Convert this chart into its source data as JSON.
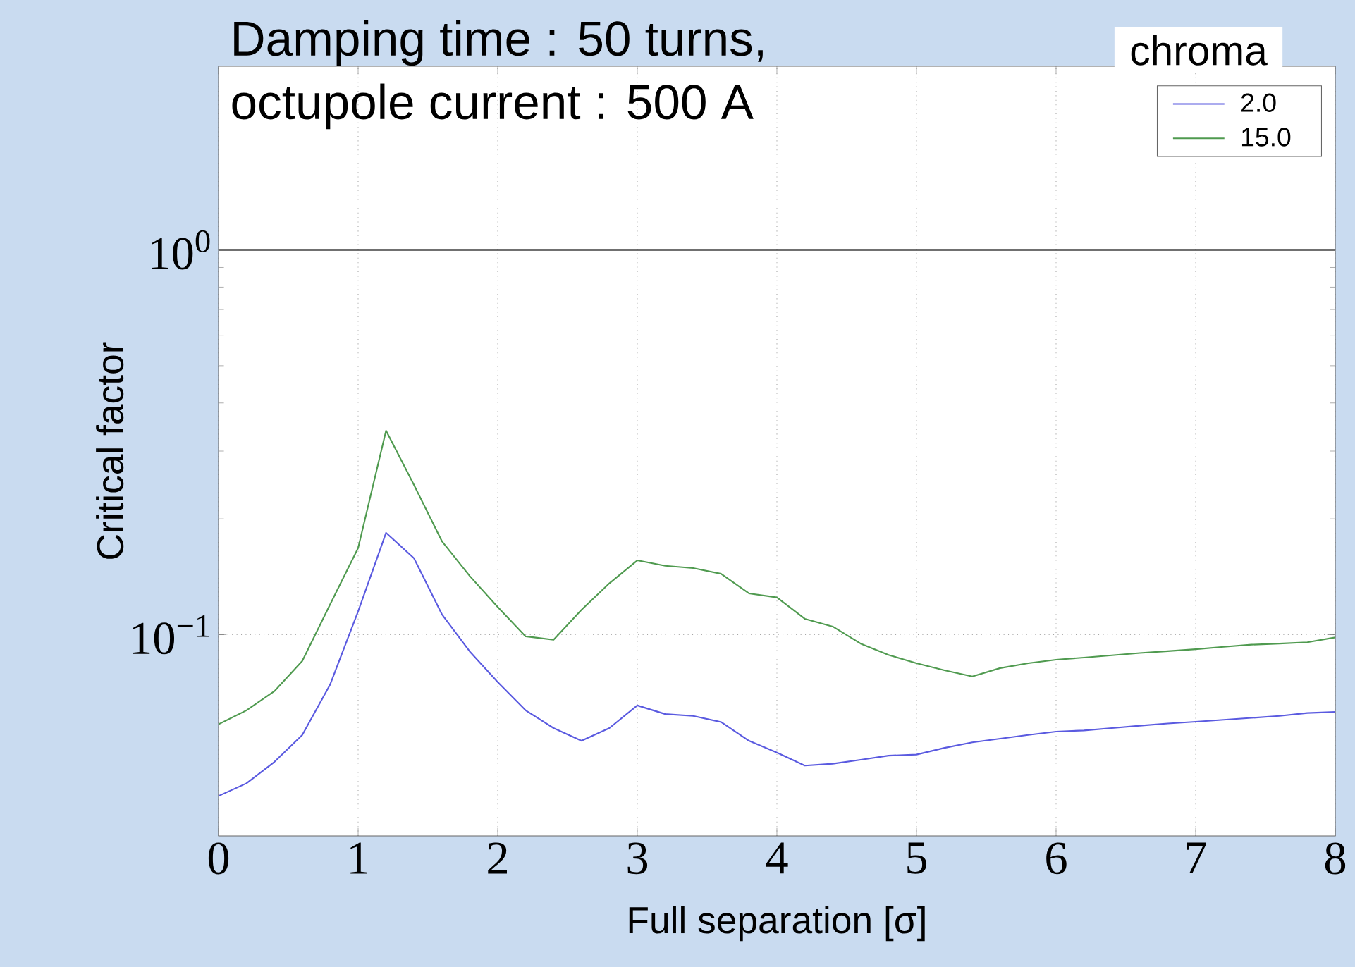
{
  "chart_data": {
    "type": "line",
    "annotations": [
      "Damping time : 50 turns,",
      "octupole current : 500 A"
    ],
    "xlabel": "Full separation [σ]",
    "ylabel": "Critical factor",
    "legend_title": "chroma",
    "x": [
      0,
      0.2,
      0.4,
      0.6,
      0.8,
      1.0,
      1.2,
      1.4,
      1.6,
      1.8,
      2.0,
      2.2,
      2.4,
      2.6,
      2.8,
      3.0,
      3.2,
      3.4,
      3.6,
      3.8,
      4.0,
      4.2,
      4.4,
      4.6,
      4.8,
      5.0,
      5.2,
      5.4,
      5.6,
      5.8,
      6.0,
      6.2,
      6.4,
      6.6,
      6.8,
      7.0,
      7.2,
      7.4,
      7.6,
      7.8,
      8.0
    ],
    "series": [
      {
        "name": "2.0",
        "color": "#5a5ae0",
        "values": [
          0.0381,
          0.0411,
          0.0467,
          0.0549,
          0.0743,
          0.115,
          0.184,
          0.158,
          0.113,
          0.0904,
          0.0753,
          0.0636,
          0.0572,
          0.053,
          0.0572,
          0.0655,
          0.0622,
          0.0615,
          0.0593,
          0.053,
          0.0494,
          0.0457,
          0.0462,
          0.0473,
          0.0485,
          0.0488,
          0.0508,
          0.0525,
          0.0537,
          0.0549,
          0.056,
          0.0564,
          0.0572,
          0.058,
          0.0588,
          0.0594,
          0.0601,
          0.0608,
          0.0615,
          0.0626,
          0.063
        ]
      },
      {
        "name": "15.0",
        "color": "#4f9a4f",
        "values": [
          0.0585,
          0.0636,
          0.0713,
          0.0855,
          0.12,
          0.168,
          0.339,
          0.245,
          0.175,
          0.142,
          0.118,
          0.099,
          0.097,
          0.116,
          0.136,
          0.156,
          0.151,
          0.149,
          0.144,
          0.128,
          0.125,
          0.11,
          0.105,
          0.0948,
          0.0886,
          0.0843,
          0.0808,
          0.0779,
          0.0819,
          0.0843,
          0.0861,
          0.0872,
          0.0884,
          0.0896,
          0.0906,
          0.0917,
          0.093,
          0.0942,
          0.0948,
          0.0956,
          0.0984
        ]
      }
    ],
    "xlim": [
      0,
      8
    ],
    "ylim": [
      0.03,
      3
    ],
    "xticks": [
      0,
      1,
      2,
      3,
      4,
      5,
      6,
      7,
      8
    ],
    "yticks": [
      {
        "value": 0.1,
        "label": "10$^{−1}$"
      },
      {
        "value": 1,
        "label": "10$^{0}$"
      }
    ],
    "log": "y",
    "grid": true,
    "legend": "top right",
    "line_style": "solid",
    "marker": "none",
    "ref_lines": [
      {
        "axis": "y",
        "value": 1,
        "color": "#404040"
      }
    ]
  }
}
